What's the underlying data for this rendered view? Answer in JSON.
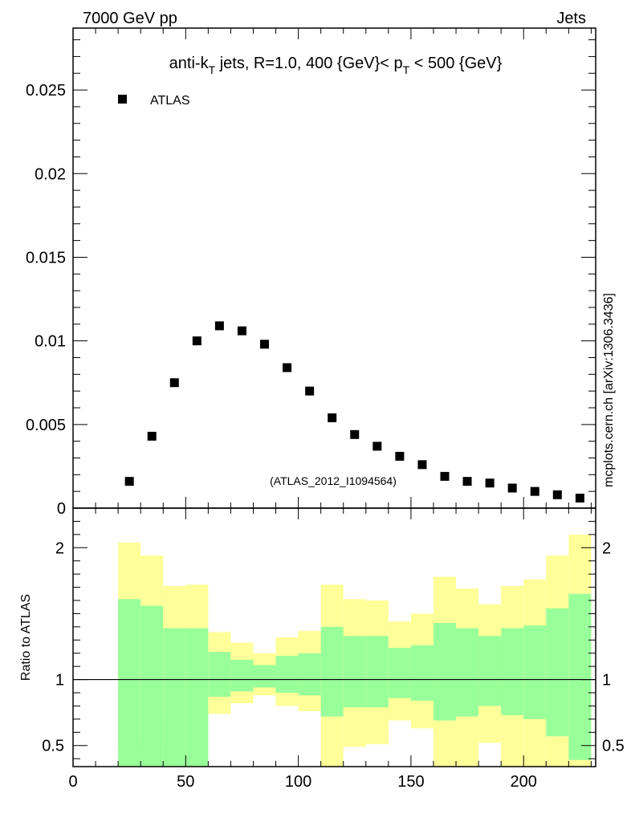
{
  "header": {
    "left_label": "7000 GeV pp",
    "right_label": "Jets",
    "side_label": "mcplots.cern.ch [arXiv:1306.3436]"
  },
  "chart_data": {
    "type": "scatter",
    "title": "anti-kT jets, R=1.0, 400 {GeV}< pT < 500 {GeV}",
    "title_parts": {
      "t1": "anti-k",
      "t1sub": "T",
      "t2": " jets, R=1.0, 400 {GeV}< p",
      "t2sub": "T",
      "t3": " < 500 {GeV}"
    },
    "analysis_label": "(ATLAS_2012_I1094564)",
    "legend": [
      {
        "name": "ATLAS",
        "marker": "square",
        "placement": "top-left"
      }
    ],
    "x_range": [
      0,
      232
    ],
    "y_range": [
      0,
      0.0287
    ],
    "x_ticks": [
      0,
      50,
      100,
      150,
      200
    ],
    "x_tick_labels": [
      "0",
      "50",
      "100",
      "150",
      "200"
    ],
    "y_ticks": [
      0,
      0.005,
      0.01,
      0.015,
      0.02,
      0.025
    ],
    "y_tick_labels": [
      "0",
      "0.005",
      "0.01",
      "0.015",
      "0.02",
      "0.025"
    ],
    "series": [
      {
        "name": "ATLAS",
        "x": [
          25,
          35,
          45,
          55,
          65,
          75,
          85,
          95,
          105,
          115,
          125,
          135,
          145,
          155,
          165,
          175,
          185,
          195,
          205,
          215,
          225
        ],
        "y": [
          0.0016,
          0.0043,
          0.0075,
          0.01,
          0.0109,
          0.0106,
          0.0098,
          0.0084,
          0.007,
          0.0054,
          0.0044,
          0.0037,
          0.0031,
          0.0026,
          0.0019,
          0.0016,
          0.0015,
          0.0012,
          0.001,
          0.0008,
          0.0006
        ]
      }
    ],
    "ratio": {
      "ylabel": "Ratio to ATLAS",
      "y_range": [
        0.34,
        2.3
      ],
      "y_ticks": [
        0.5,
        1,
        2
      ],
      "y_tick_labels": [
        "0.5",
        "1",
        "2"
      ],
      "reference_line": 1,
      "bin_edges": [
        20,
        30,
        40,
        50,
        60,
        70,
        80,
        90,
        100,
        110,
        120,
        130,
        140,
        150,
        160,
        170,
        180,
        190,
        200,
        210,
        220,
        230
      ],
      "band_colors": {
        "outer": "#ffff99",
        "inner": "#99ff99"
      },
      "outer_band": {
        "low": [
          0.46,
          0.55,
          0.73,
          0.72,
          0.74,
          0.82,
          0.88,
          0.8,
          0.76,
          0.34,
          0.49,
          0.51,
          0.69,
          0.63,
          0.34,
          0.34,
          0.52,
          0.34,
          0.34,
          0.34,
          0.34
        ],
        "high": [
          2.04,
          1.94,
          1.71,
          1.72,
          1.36,
          1.28,
          1.2,
          1.32,
          1.37,
          1.72,
          1.61,
          1.6,
          1.44,
          1.5,
          1.78,
          1.69,
          1.57,
          1.71,
          1.76,
          1.94,
          2.1
        ]
      },
      "inner_band": {
        "low": [
          0.34,
          0.34,
          0.34,
          0.34,
          0.87,
          0.91,
          0.94,
          0.9,
          0.88,
          0.72,
          0.79,
          0.79,
          0.86,
          0.84,
          0.69,
          0.72,
          0.8,
          0.73,
          0.7,
          0.57,
          0.39
        ],
        "high": [
          1.61,
          1.56,
          1.39,
          1.39,
          1.21,
          1.15,
          1.11,
          1.18,
          1.2,
          1.4,
          1.33,
          1.33,
          1.24,
          1.26,
          1.43,
          1.39,
          1.33,
          1.39,
          1.41,
          1.54,
          1.65
        ]
      }
    }
  }
}
